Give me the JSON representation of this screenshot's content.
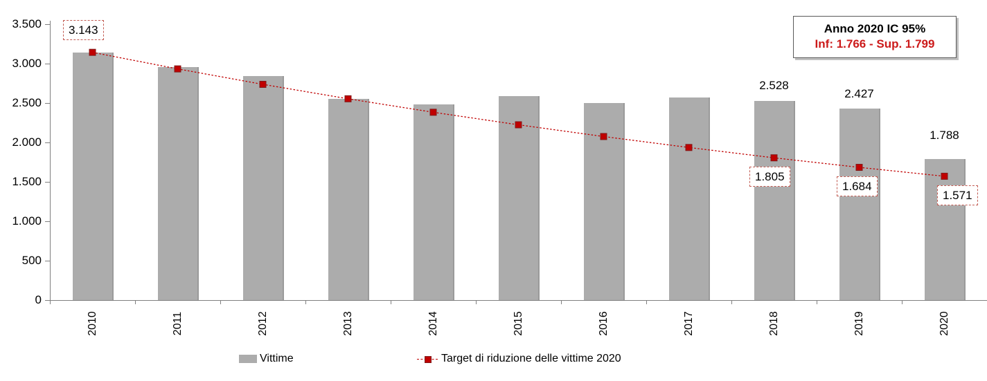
{
  "chart_data": {
    "type": "bar",
    "title": "",
    "xlabel": "",
    "ylabel": "",
    "categories": [
      "2010",
      "2011",
      "2012",
      "2013",
      "2014",
      "2015",
      "2016",
      "2017",
      "2018",
      "2019",
      "2020"
    ],
    "series": [
      {
        "name": "Vittime",
        "type": "bar",
        "color": "#acacac",
        "values": [
          3143,
          2955,
          2840,
          2555,
          2485,
          2585,
          2500,
          2570,
          2528,
          2427,
          1788
        ]
      },
      {
        "name": "Target di riduzione delle vittime 2020",
        "type": "line",
        "dashed": true,
        "color": "#c00000",
        "marker": "square",
        "values": [
          3143,
          2933,
          2737,
          2554,
          2383,
          2224,
          2075,
          1936,
          1805,
          1684,
          1571
        ]
      }
    ],
    "ylim": [
      0,
      3500
    ],
    "y_ticks": [
      {
        "value": 0,
        "label": "0"
      },
      {
        "value": 500,
        "label": "500"
      },
      {
        "value": 1000,
        "label": "1.000"
      },
      {
        "value": 1500,
        "label": "1.500"
      },
      {
        "value": 2000,
        "label": "2.000"
      },
      {
        "value": 2500,
        "label": "2.500"
      },
      {
        "value": 3000,
        "label": "3.000"
      },
      {
        "value": 3500,
        "label": "3.500"
      }
    ],
    "grid": false,
    "legend_position": "bottom",
    "bar_value_labels": [
      {
        "category": "2018",
        "label": "2.528",
        "dy": -32
      },
      {
        "category": "2019",
        "label": "2.427",
        "dy": -31
      },
      {
        "category": "2020",
        "label": "1.788",
        "dy": -44
      }
    ],
    "target_boxed_labels": [
      {
        "category": "2010",
        "label": "3.143",
        "position": "above",
        "dx": -13
      },
      {
        "category": "2018",
        "label": "1.805",
        "position": "below",
        "dx": -6
      },
      {
        "category": "2019",
        "label": "1.684",
        "position": "below",
        "dx": -3
      },
      {
        "category": "2020",
        "label": "1.571",
        "position": "below",
        "dx": 19
      }
    ]
  },
  "legend": {
    "items": [
      {
        "label": "Vittime",
        "swatch": "bar",
        "color": "#acacac"
      },
      {
        "label": "Target di riduzione delle vittime 2020",
        "swatch": "line-marker",
        "color": "#c00000"
      }
    ]
  },
  "info_box": {
    "title": "Anno 2020 IC 95%",
    "range": "Inf: 1.766 - Sup. 1.799"
  },
  "colors": {
    "bar": "#acacac",
    "target_red": "#c00000",
    "info_red": "#cc1a1a",
    "axis": "#7f7f7f",
    "box_border": "#c25b52"
  }
}
